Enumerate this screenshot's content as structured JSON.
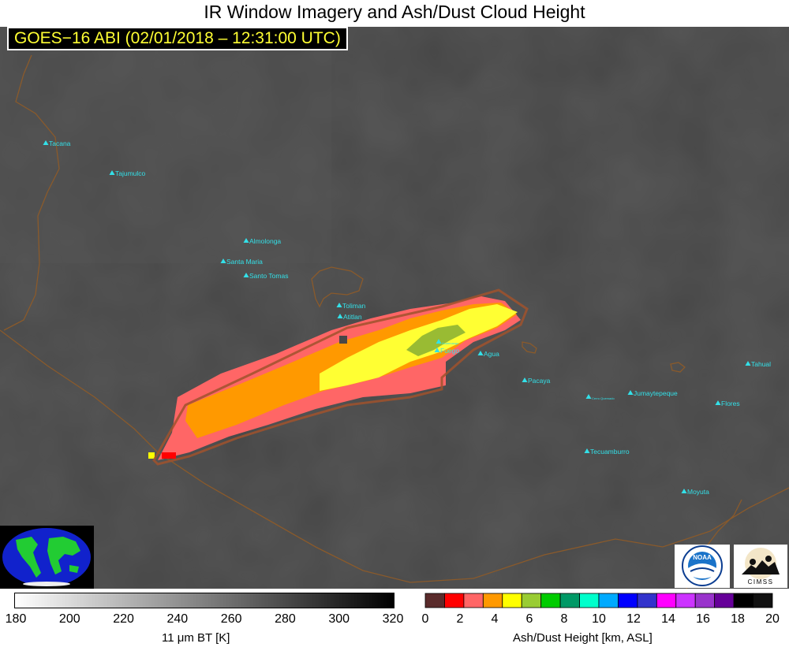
{
  "title": "IR Window Imagery and Ash/Dust Cloud Height",
  "subtitle": "GOES−16 ABI (02/01/2018 – 12:31:00 UTC)",
  "volcanoes": [
    {
      "name": "Tacana"
    },
    {
      "name": "Tajumulco"
    },
    {
      "name": "Almolonga"
    },
    {
      "name": "Santa Maria"
    },
    {
      "name": "Santo Tomas"
    },
    {
      "name": "Toliman"
    },
    {
      "name": "Atitlan"
    },
    {
      "name": "Acatenango"
    },
    {
      "name": "Fuego"
    },
    {
      "name": "Agua"
    },
    {
      "name": "Pacaya"
    },
    {
      "name": "Cerro Quemado"
    },
    {
      "name": "Jumaytepeque"
    },
    {
      "name": "Tahual"
    },
    {
      "name": "Flores"
    },
    {
      "name": "Tecuamburro"
    },
    {
      "name": "Moyuta"
    }
  ],
  "bt_colorbar": {
    "label": "11 μm BT [K]",
    "ticks": [
      "180",
      "200",
      "220",
      "240",
      "260",
      "280",
      "300",
      "320"
    ]
  },
  "ash_colorbar": {
    "label": "Ash/Dust Height [km, ASL]",
    "ticks": [
      "0",
      "2",
      "4",
      "6",
      "8",
      "10",
      "12",
      "14",
      "16",
      "18",
      "20"
    ],
    "colors": [
      "#5a2b2b",
      "#ff0000",
      "#ff6666",
      "#ff9900",
      "#ffff00",
      "#99cc33",
      "#00cc00",
      "#009966",
      "#00ffcc",
      "#00aaff",
      "#0000ff",
      "#3333cc",
      "#ff00ff",
      "#cc33ff",
      "#9933cc",
      "#660099",
      "#000000",
      "#111111"
    ]
  },
  "logos": {
    "noaa": "NOAA",
    "cimss": "CIMSS"
  },
  "colors": {
    "marker": "#33e0e8",
    "border": "#8a5a2b",
    "outline": "#a0522d",
    "background": "#4a4a4a"
  }
}
